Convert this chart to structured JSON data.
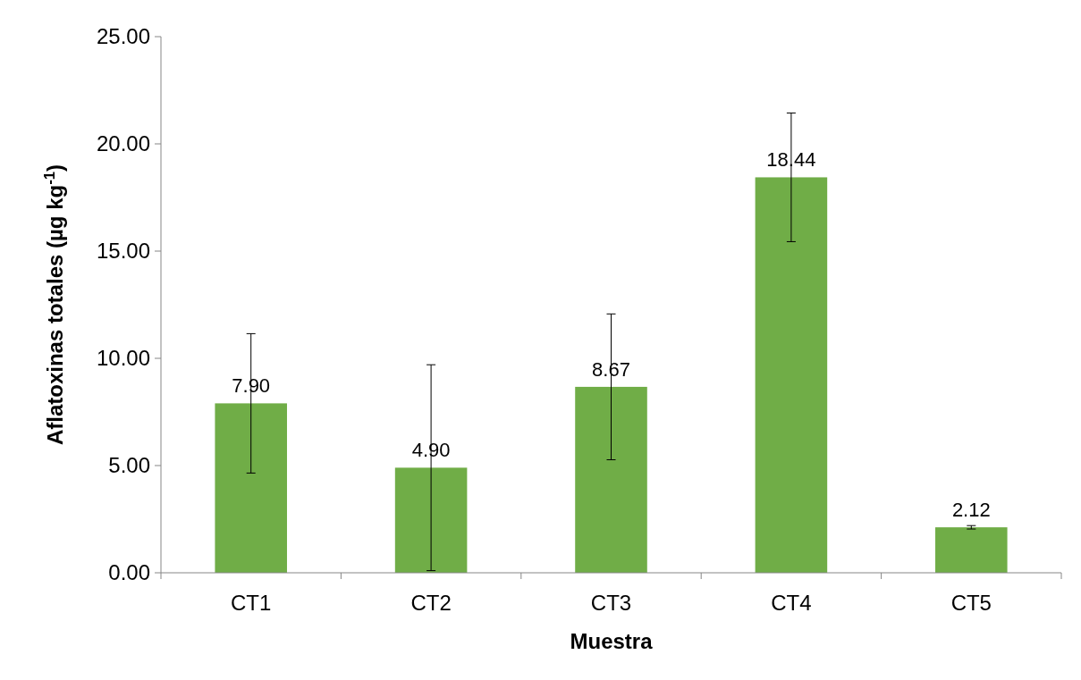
{
  "chart_data": {
    "type": "bar",
    "xlabel": "Muestra",
    "ylabel": "Aflatoxinas totales  (µg kg$^{-1}$)",
    "categories": [
      "CT1",
      "CT2",
      "CT3",
      "CT4",
      "CT5"
    ],
    "values": [
      7.9,
      4.9,
      8.67,
      18.44,
      2.12
    ],
    "errors": [
      3.25,
      4.8,
      3.4,
      3.0,
      0.08
    ],
    "color": "#70ad47",
    "value_labels": [
      "7.90",
      "4.90",
      "8.67",
      "18.44",
      "2.12"
    ],
    "ylim": [
      0,
      25
    ],
    "yticks": [
      {
        "value": 0,
        "label": "0.00"
      },
      {
        "value": 5,
        "label": "5.00"
      },
      {
        "value": 10,
        "label": "10.00"
      },
      {
        "value": 15,
        "label": "15.00"
      },
      {
        "value": 20,
        "label": "20.00"
      },
      {
        "value": 25,
        "label": "25.00"
      }
    ]
  }
}
